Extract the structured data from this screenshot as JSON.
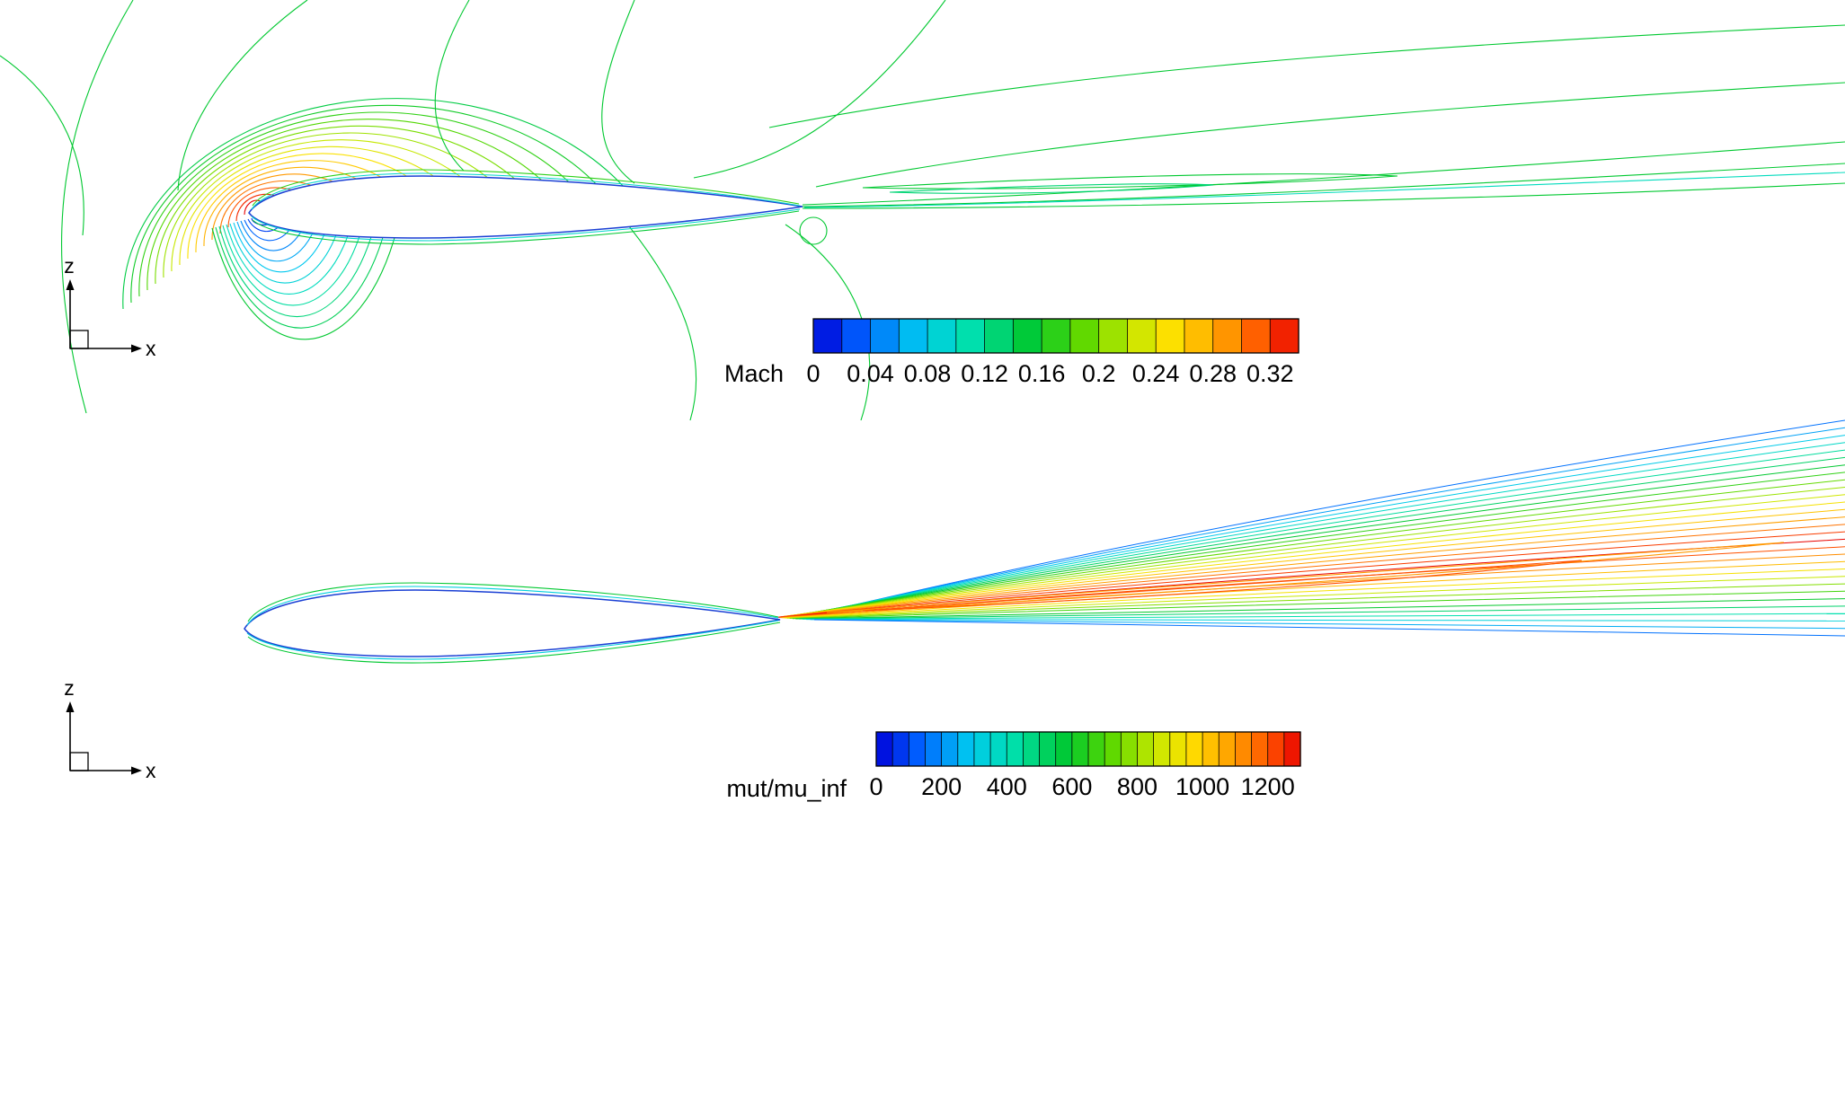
{
  "page": {
    "background": "#ffffff"
  },
  "colormap": {
    "name": "rainbow",
    "stops": [
      {
        "t": 0.0,
        "color": "#0000d8"
      },
      {
        "t": 0.1,
        "color": "#0060ff"
      },
      {
        "t": 0.22,
        "color": "#00c8f0"
      },
      {
        "t": 0.32,
        "color": "#00e0b0"
      },
      {
        "t": 0.45,
        "color": "#00c830"
      },
      {
        "t": 0.55,
        "color": "#58d800"
      },
      {
        "t": 0.66,
        "color": "#c8e800"
      },
      {
        "t": 0.74,
        "color": "#ffe000"
      },
      {
        "t": 0.85,
        "color": "#ff9800"
      },
      {
        "t": 0.93,
        "color": "#ff5000"
      },
      {
        "t": 1.0,
        "color": "#e80000"
      }
    ]
  },
  "chart_data": [
    {
      "type": "contour",
      "id": "mach-field",
      "variable": "Mach",
      "depicts": "Mach number contour lines around an airfoil with leading-edge stagnation region and trailing wake",
      "axes_indicator": {
        "vertical": "z",
        "horizontal": "x"
      },
      "colorbar": {
        "label": "Mach",
        "orientation": "horizontal",
        "min": 0,
        "max": 0.34,
        "segments": 17,
        "segment_step": 0.02,
        "ticks": [
          "0",
          "0.04",
          "0.08",
          "0.12",
          "0.16",
          "0.2",
          "0.24",
          "0.28",
          "0.32"
        ],
        "tick_values": [
          0,
          0.04,
          0.08,
          0.12,
          0.16,
          0.2,
          0.24,
          0.28,
          0.32
        ]
      },
      "line_counts": {
        "upper_fan": 16,
        "lower_fan": 12
      }
    },
    {
      "type": "contour",
      "id": "turbulent-viscosity-field",
      "variable": "mut/mu_inf",
      "depicts": "Turbulent viscosity ratio contour lines showing a wake fan spreading downstream of an airfoil",
      "axes_indicator": {
        "vertical": "z",
        "horizontal": "x"
      },
      "colorbar": {
        "label": "mut/mu_inf",
        "orientation": "horizontal",
        "min": 0,
        "max": 1300,
        "segments": 26,
        "segment_step": 50,
        "ticks": [
          "0",
          "200",
          "400",
          "600",
          "800",
          "1000",
          "1200"
        ],
        "tick_values": [
          0,
          200,
          400,
          600,
          800,
          1000,
          1200
        ]
      },
      "line_counts": {
        "wake_fan": 30
      }
    }
  ]
}
